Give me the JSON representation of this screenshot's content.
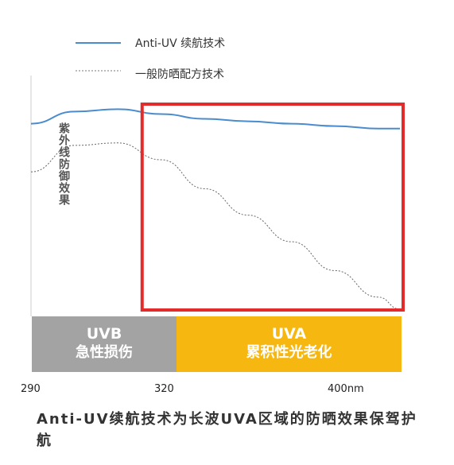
{
  "chart_data": {
    "type": "line",
    "title": "",
    "ylabel": "紫外线防御效果",
    "xlabel": "",
    "x_ticks": [
      "290",
      "320",
      "400nm"
    ],
    "series": [
      {
        "name": "Anti-UV 续航技术",
        "color": "#4a8ccd",
        "style": "solid",
        "x": [
          290,
          300,
          310,
          320,
          330,
          340,
          350,
          360,
          370,
          375
        ],
        "y": [
          0.8,
          0.85,
          0.86,
          0.84,
          0.82,
          0.81,
          0.8,
          0.79,
          0.78,
          0.78
        ]
      },
      {
        "name": "一般防晒配方技术",
        "color": "#666666",
        "style": "dotted",
        "x": [
          290,
          300,
          310,
          320,
          330,
          340,
          350,
          360,
          370,
          375
        ],
        "y": [
          0.6,
          0.71,
          0.72,
          0.65,
          0.53,
          0.42,
          0.31,
          0.19,
          0.08,
          0.03
        ]
      }
    ],
    "highlight_box": {
      "x_range": [
        320,
        375
      ],
      "color": "#e32b2b"
    },
    "bands": [
      {
        "line1": "UVB",
        "line2": "急性损伤",
        "x_range": [
          290,
          320
        ],
        "color": "#a3a3a3"
      },
      {
        "line1": "UVA",
        "line2": "累积性光老化",
        "x_range": [
          320,
          375
        ],
        "color": "#f7b711"
      }
    ],
    "caption": "Anti-UV续航技术为长波UVA区域的防晒效果保驾护航"
  }
}
